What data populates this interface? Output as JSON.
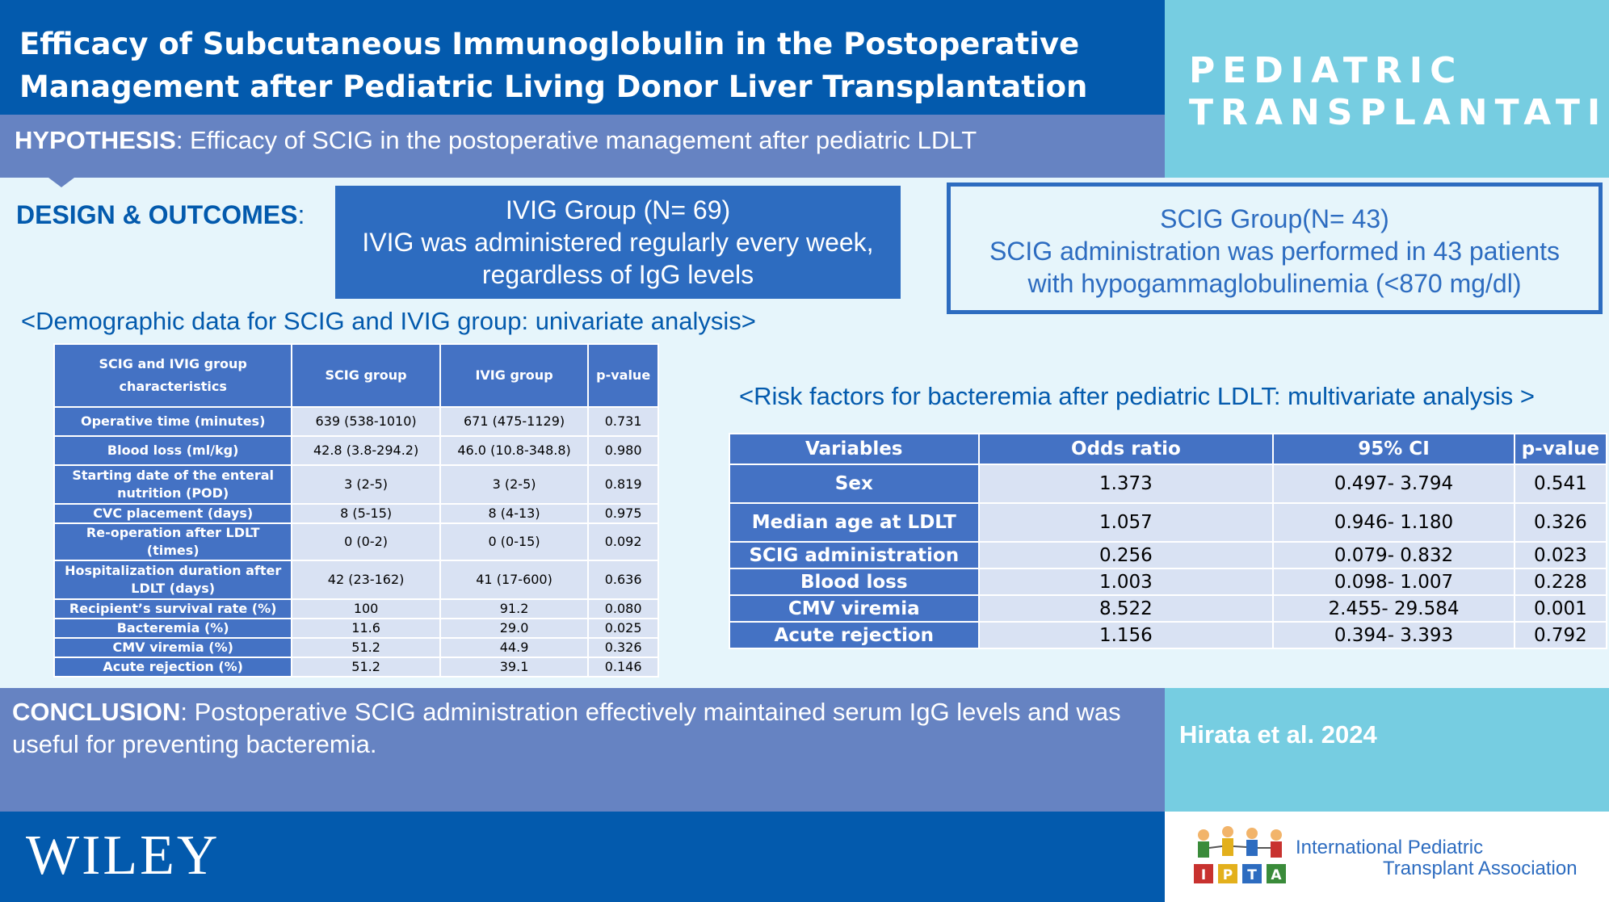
{
  "title": {
    "line1": "Efficacy of Subcutaneous Immunoglobulin in the Postoperative",
    "line2": "Management after Pediatric Living Donor Liver Transplantation"
  },
  "journal": {
    "line1": "PEDIATRIC",
    "line2": "TRANSPLANTATION"
  },
  "hypothesis": {
    "label": "HYPOTHESIS",
    "text": ": Efficacy of SCIG in the postoperative management after pediatric LDLT"
  },
  "design": {
    "label": "DESIGN & OUTCOMES",
    "colon": ":"
  },
  "ivig_group": {
    "line1": "IVIG Group (N= 69)",
    "line2": "IVIG was administered regularly every week,",
    "line3": "regardless of IgG levels"
  },
  "scig_group": {
    "line1": "SCIG Group(N= 43)",
    "line2": "SCIG administration was performed in 43 patients",
    "line3": "with hypogammaglobulinemia (<870 mg/dl)"
  },
  "demographic": {
    "title": "<Demographic data for SCIG and IVIG group: univariate analysis>",
    "headers": [
      "SCIG and IVIG group characteristics",
      "SCIG group",
      "IVIG group",
      "p-value"
    ],
    "rows": [
      [
        "Operative time (minutes)",
        "639 (538-1010)",
        "671 (475-1129)",
        "0.731"
      ],
      [
        "Blood loss (ml/kg)",
        "42.8 (3.8-294.2)",
        "46.0 (10.8-348.8)",
        "0.980"
      ],
      [
        "Starting date of the enteral nutrition (POD)",
        "3 (2-5)",
        "3 (2-5)",
        "0.819"
      ],
      [
        "CVC placement (days)",
        "8 (5-15)",
        "8 (4-13)",
        "0.975"
      ],
      [
        "Re-operation after LDLT (times)",
        "0 (0-2)",
        "0 (0-15)",
        "0.092"
      ],
      [
        "Hospitalization duration after LDLT (days)",
        "42 (23-162)",
        "41 (17-600)",
        "0.636"
      ],
      [
        "Recipient’s survival rate (%)",
        "100",
        "91.2",
        "0.080"
      ],
      [
        "Bacteremia (%)",
        "11.6",
        "29.0",
        "0.025"
      ],
      [
        "CMV viremia (%)",
        "51.2",
        "44.9",
        "0.326"
      ],
      [
        "Acute rejection (%)",
        "51.2",
        "39.1",
        "0.146"
      ]
    ]
  },
  "risk": {
    "title": "<Risk factors for bacteremia after pediatric LDLT: multivariate analysis >",
    "headers": [
      "Variables",
      "Odds ratio",
      "95% CI",
      "p-value"
    ],
    "rows": [
      [
        "Sex",
        "1.373",
        "0.497- 3.794",
        "0.541"
      ],
      [
        "Median age at LDLT",
        "1.057",
        "0.946- 1.180",
        "0.326"
      ],
      [
        "SCIG administration",
        "0.256",
        "0.079- 0.832",
        "0.023"
      ],
      [
        "Blood loss",
        "1.003",
        "0.098- 1.007",
        "0.228"
      ],
      [
        "CMV viremia",
        "8.522",
        "2.455- 29.584",
        "0.001"
      ],
      [
        "Acute rejection",
        "1.156",
        "0.394- 3.393",
        "0.792"
      ]
    ]
  },
  "conclusion": {
    "label": "CONCLUSION",
    "text": ": Postoperative SCIG administration effectively maintained serum IgG levels and was useful for preventing bacteremia."
  },
  "citation": "Hirata et al. 2024",
  "publisher": "WILEY",
  "association": {
    "line1": "International Pediatric",
    "line2": "Transplant Association",
    "blocks": [
      "I",
      "P",
      "T",
      "A"
    ]
  }
}
